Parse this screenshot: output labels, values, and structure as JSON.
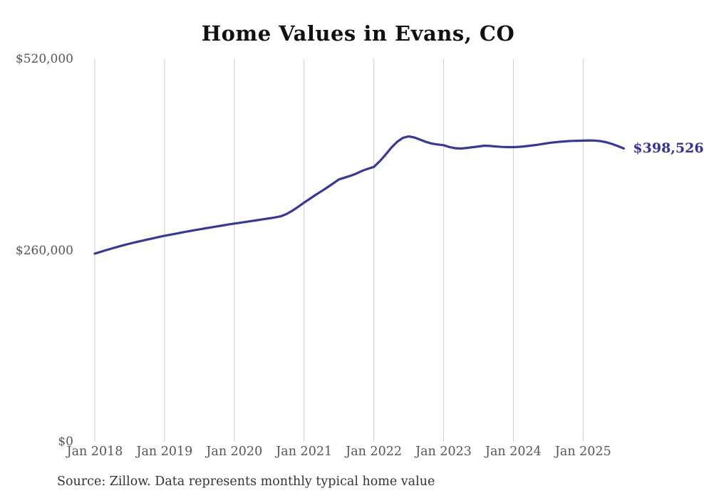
{
  "page": {
    "background": "#ffffff"
  },
  "chart": {
    "title": "Home Values in Evans, CO",
    "latest_value_label": "$398,526",
    "source_note": "Source: Zillow. Data represents monthly typical home value",
    "colors": {
      "line": "#38389c",
      "latest_label": "#33339b",
      "gridline": "#cccccc",
      "tick_text": "#555555",
      "title_text": "#111111",
      "source_text": "#333333"
    }
  },
  "chart_data": {
    "type": "line",
    "title": "Home Values in Evans, CO",
    "xlabel": "",
    "ylabel": "",
    "ylim": [
      0,
      520000
    ],
    "grid": "vertical-only",
    "legend": "none",
    "x_tick_labels": [
      "Jan 2018",
      "Jan 2019",
      "Jan 2020",
      "Jan 2021",
      "Jan 2022",
      "Jan 2023",
      "Jan 2024",
      "Jan 2025"
    ],
    "y_ticks": [
      {
        "label": "$520,000",
        "value": 520000
      },
      {
        "label": "$260,000",
        "value": 260000
      },
      {
        "label": "$0",
        "value": 0
      }
    ],
    "latest_value": 398526,
    "series": [
      {
        "name": "Monthly typical home value",
        "start": "2018-01",
        "end": "2025-08",
        "frequency": "monthly",
        "values": [
          255600,
          258100,
          260500,
          262800,
          265000,
          267200,
          269200,
          271100,
          272900,
          274700,
          276400,
          278200,
          279900,
          281400,
          282900,
          284400,
          285900,
          287300,
          288700,
          290000,
          291300,
          292600,
          293900,
          295200,
          296500,
          297600,
          298800,
          300000,
          301200,
          302400,
          303600,
          304800,
          306400,
          309500,
          314000,
          319300,
          325000,
          330200,
          335500,
          340600,
          345600,
          351000,
          356500,
          359000,
          361500,
          364500,
          368200,
          371000,
          373500,
          381000,
          390000,
          399500,
          407500,
          413000,
          415000,
          413500,
          410500,
          407500,
          405200,
          404000,
          403000,
          400500,
          399000,
          398500,
          399300,
          400300,
          401300,
          402300,
          402000,
          401300,
          400700,
          400400,
          400400,
          400800,
          401500,
          402400,
          403400,
          404700,
          405900,
          406900,
          407700,
          408300,
          408800,
          409000,
          409200,
          409500,
          409300,
          408500,
          407000,
          404700,
          401800,
          398526
        ]
      }
    ]
  }
}
